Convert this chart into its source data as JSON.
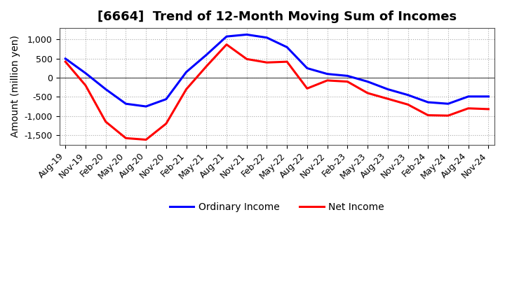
{
  "title": "[6664]  Trend of 12-Month Moving Sum of Incomes",
  "ylabel": "Amount (million yen)",
  "xlabels": [
    "Aug-19",
    "Nov-19",
    "Feb-20",
    "May-20",
    "Aug-20",
    "Nov-20",
    "Feb-21",
    "May-21",
    "Aug-21",
    "Nov-21",
    "Feb-22",
    "May-22",
    "Aug-22",
    "Nov-22",
    "Feb-23",
    "May-23",
    "Aug-23",
    "Nov-23",
    "Feb-24",
    "May-24",
    "Aug-24",
    "Nov-24"
  ],
  "ordinary_income": [
    500,
    120,
    -300,
    -680,
    -750,
    -560,
    150,
    600,
    1080,
    1130,
    1050,
    800,
    250,
    100,
    50,
    -100,
    -300,
    -450,
    -640,
    -680,
    -490,
    -490
  ],
  "net_income": [
    420,
    -200,
    -1150,
    -1580,
    -1620,
    -1200,
    -300,
    300,
    870,
    490,
    400,
    420,
    -280,
    -70,
    -100,
    -400,
    -550,
    -700,
    -980,
    -990,
    -800,
    -820
  ],
  "ordinary_color": "#0000FF",
  "net_color": "#FF0000",
  "background_color": "#FFFFFF",
  "plot_bg_color": "#FFFFFF",
  "grid_color": "#AAAAAA",
  "ylim": [
    -1750,
    1300
  ],
  "yticks": [
    -1500,
    -1000,
    -500,
    0,
    500,
    1000
  ],
  "title_fontsize": 13,
  "axis_fontsize": 10,
  "tick_fontsize": 9,
  "legend_fontsize": 10,
  "line_width": 2.2
}
